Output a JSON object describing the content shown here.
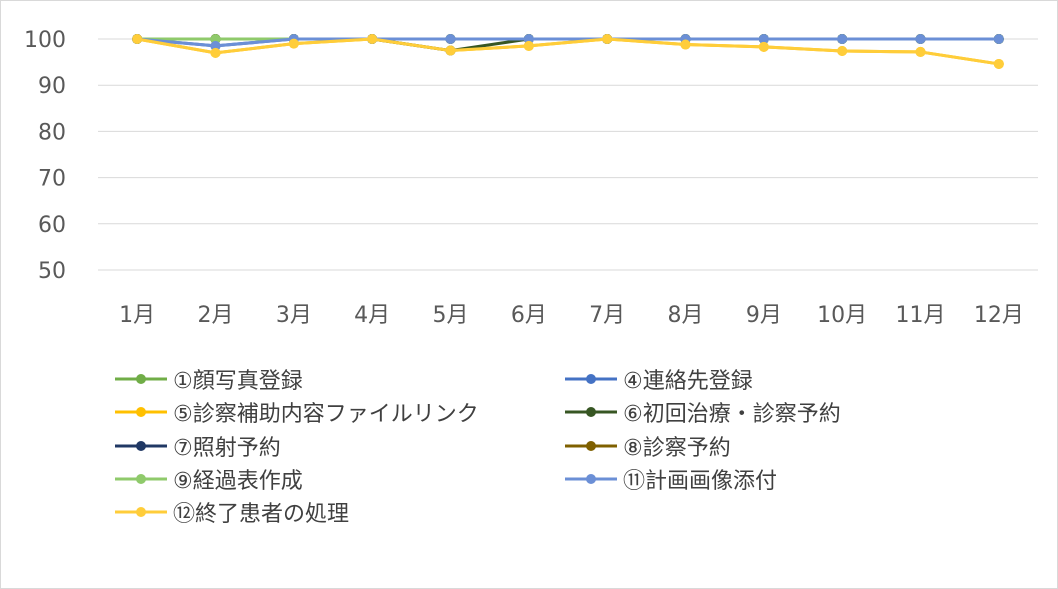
{
  "chart_data": {
    "type": "line",
    "categories": [
      "1月",
      "2月",
      "3月",
      "4月",
      "5月",
      "6月",
      "7月",
      "8月",
      "9月",
      "10月",
      "11月",
      "12月"
    ],
    "ylim": [
      50,
      100
    ],
    "yticks": [
      50,
      60,
      70,
      80,
      90,
      100
    ],
    "grid": true,
    "legend_position": "bottom",
    "series": [
      {
        "name": "①顔写真登録",
        "color": "#70ad47",
        "values": [
          100,
          100,
          100,
          100,
          100,
          100,
          100,
          100,
          100,
          100,
          100,
          100
        ]
      },
      {
        "name": "④連絡先登録",
        "color": "#4472c4",
        "values": [
          100,
          98.5,
          100,
          100,
          100,
          100,
          100,
          100,
          100,
          100,
          100,
          100
        ]
      },
      {
        "name": "⑤診察補助内容ファイルリンク",
        "color": "#ffc000",
        "values": [
          100,
          97,
          99,
          100,
          97.5,
          98.5,
          100,
          98.8,
          98.3,
          97.4,
          97.2,
          94.6
        ]
      },
      {
        "name": "⑥初回治療・診察予約",
        "color": "#375623",
        "values": [
          100,
          100,
          100,
          100,
          97.5,
          100,
          100,
          100,
          100,
          100,
          100,
          100
        ]
      },
      {
        "name": "⑦照射予約",
        "color": "#203864",
        "values": [
          100,
          100,
          100,
          100,
          100,
          100,
          100,
          100,
          100,
          100,
          100,
          100
        ]
      },
      {
        "name": "⑧診察予約",
        "color": "#7f6000",
        "values": [
          100,
          100,
          100,
          100,
          100,
          100,
          100,
          100,
          100,
          100,
          100,
          100
        ]
      },
      {
        "name": "⑨経過表作成",
        "color": "#8fca6b",
        "values": [
          100,
          100,
          100,
          100,
          100,
          100,
          100,
          100,
          100,
          100,
          100,
          100
        ]
      },
      {
        "name": "⑪計画画像添付",
        "color": "#6b8fd6",
        "values": [
          100,
          98.5,
          100,
          100,
          100,
          100,
          100,
          100,
          100,
          100,
          100,
          100
        ]
      },
      {
        "name": "⑫終了患者の処理",
        "color": "#ffcd3a",
        "values": [
          100,
          97,
          99,
          100,
          97.5,
          98.5,
          100,
          98.8,
          98.3,
          97.4,
          97.2,
          94.6
        ]
      }
    ]
  }
}
